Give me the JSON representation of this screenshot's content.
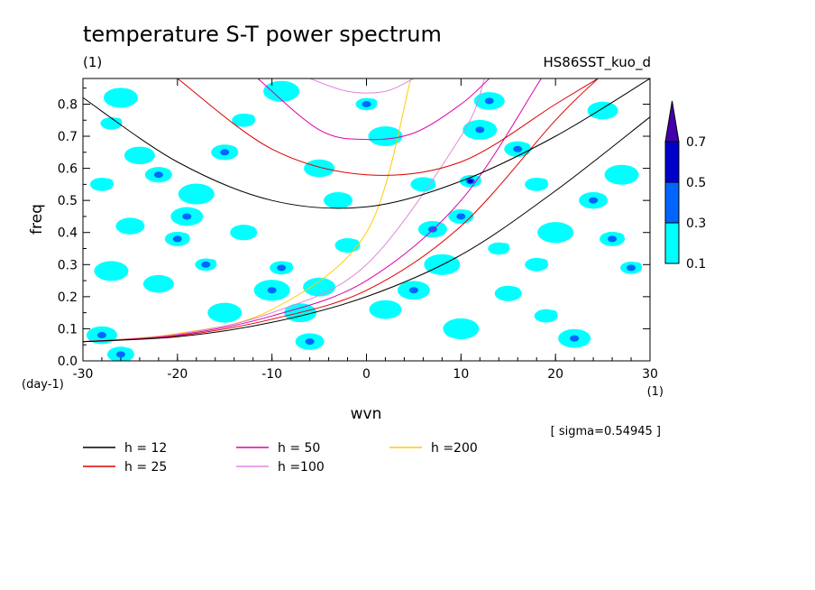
{
  "title": "temperature S-T power spectrum",
  "subtitle_left": "(1)",
  "subtitle_right": "HS86SST_kuo_d",
  "sigma_label": "[ sigma=0.54945 ]",
  "chart_data": {
    "type": "heatmap",
    "xlabel": "wvn",
    "ylabel": "freq",
    "x_unit": "(1)",
    "y_unit": "(day-1)",
    "xlim": [
      -30,
      30
    ],
    "ylim": [
      0,
      0.88
    ],
    "x_ticks": [
      "-30",
      "-20",
      "-10",
      "0",
      "10",
      "20",
      "30"
    ],
    "y_ticks": [
      "0.0",
      "0.1",
      "0.2",
      "0.3",
      "0.4",
      "0.5",
      "0.6",
      "0.7",
      "0.8"
    ],
    "colorbar": {
      "levels": [
        "0.1",
        "0.3",
        "0.5",
        "0.7"
      ],
      "colors": [
        "#00ffff",
        "#0066ff",
        "#0000cc",
        "#4400aa"
      ]
    },
    "contour_levels": [
      0.1,
      0.3,
      0.5,
      0.7
    ],
    "series": [
      {
        "name": "h = 12",
        "color": "#000000",
        "h": 12
      },
      {
        "name": "h = 25",
        "color": "#dd0000",
        "h": 25
      },
      {
        "name": "h = 50",
        "color": "#dd00aa",
        "h": 50
      },
      {
        "name": "h =100",
        "color": "#dd88dd",
        "h": 100
      },
      {
        "name": "h =200",
        "color": "#ffcc00",
        "h": 200
      }
    ],
    "kelvin_curves": [
      {
        "x": [
          -30,
          -20,
          -10,
          0,
          4.7
        ],
        "y": [
          0.06,
          0.085,
          0.16,
          0.4,
          0.88
        ],
        "color": "#ffcc00"
      },
      {
        "x": [
          -30,
          -20,
          -10,
          0,
          10,
          12.5
        ],
        "y": [
          0.06,
          0.083,
          0.15,
          0.3,
          0.7,
          0.88
        ],
        "color": "#dd88dd"
      },
      {
        "x": [
          -30,
          -20,
          -10,
          0,
          10,
          18.5
        ],
        "y": [
          0.06,
          0.08,
          0.14,
          0.25,
          0.5,
          0.88
        ],
        "color": "#dd00aa"
      },
      {
        "x": [
          -30,
          -20,
          -10,
          0,
          10,
          20,
          24.5
        ],
        "y": [
          0.06,
          0.078,
          0.13,
          0.22,
          0.42,
          0.75,
          0.88
        ],
        "color": "#dd0000"
      },
      {
        "x": [
          -30,
          -20,
          -10,
          0,
          10,
          20,
          30
        ],
        "y": [
          0.06,
          0.075,
          0.12,
          0.2,
          0.33,
          0.53,
          0.76
        ],
        "color": "#000000"
      }
    ],
    "inertia_gravity_curves": [
      {
        "color": "#000000",
        "x": [
          -30,
          -20,
          -10,
          0,
          10,
          20,
          30
        ],
        "y": [
          0.82,
          0.62,
          0.5,
          0.48,
          0.56,
          0.7,
          0.88
        ]
      },
      {
        "color": "#dd0000",
        "x": [
          -20,
          -10,
          0,
          10,
          20,
          24.5
        ],
        "y": [
          0.88,
          0.66,
          0.58,
          0.62,
          0.8,
          0.88
        ]
      },
      {
        "color": "#dd00aa",
        "x": [
          -11.5,
          -5,
          0,
          5,
          10,
          13
        ],
        "y": [
          0.88,
          0.72,
          0.69,
          0.71,
          0.8,
          0.88
        ]
      },
      {
        "color": "#dd88dd",
        "x": [
          -6,
          -2,
          2,
          5
        ],
        "y": [
          0.88,
          0.84,
          0.84,
          0.88
        ]
      }
    ],
    "blobs": [
      {
        "x": -27,
        "y": 0.74,
        "level": 1
      },
      {
        "x": -26,
        "y": 0.82,
        "level": 1
      },
      {
        "x": -24,
        "y": 0.64,
        "level": 1
      },
      {
        "x": -22,
        "y": 0.58,
        "level": 2
      },
      {
        "x": -28,
        "y": 0.55,
        "level": 1
      },
      {
        "x": -18,
        "y": 0.52,
        "level": 1
      },
      {
        "x": -19,
        "y": 0.45,
        "level": 2
      },
      {
        "x": -25,
        "y": 0.42,
        "level": 1
      },
      {
        "x": -20,
        "y": 0.38,
        "level": 2
      },
      {
        "x": -17,
        "y": 0.3,
        "level": 2
      },
      {
        "x": -27,
        "y": 0.28,
        "level": 1
      },
      {
        "x": -22,
        "y": 0.24,
        "level": 1
      },
      {
        "x": -13,
        "y": 0.4,
        "level": 1
      },
      {
        "x": -9,
        "y": 0.29,
        "level": 2
      },
      {
        "x": -10,
        "y": 0.22,
        "level": 2
      },
      {
        "x": -7,
        "y": 0.15,
        "level": 1
      },
      {
        "x": -6,
        "y": 0.06,
        "level": 2
      },
      {
        "x": -2,
        "y": 0.36,
        "level": 1
      },
      {
        "x": 0,
        "y": 0.8,
        "level": 2
      },
      {
        "x": 2,
        "y": 0.7,
        "level": 1
      },
      {
        "x": -5,
        "y": 0.6,
        "level": 1
      },
      {
        "x": -15,
        "y": 0.65,
        "level": 2
      },
      {
        "x": -13,
        "y": 0.75,
        "level": 1
      },
      {
        "x": -9,
        "y": 0.84,
        "level": 1
      },
      {
        "x": 5,
        "y": 0.22,
        "level": 2
      },
      {
        "x": 7,
        "y": 0.41,
        "level": 2
      },
      {
        "x": 10,
        "y": 0.45,
        "level": 2
      },
      {
        "x": 11,
        "y": 0.56,
        "level": 3
      },
      {
        "x": 12,
        "y": 0.72,
        "level": 2
      },
      {
        "x": 13,
        "y": 0.81,
        "level": 2
      },
      {
        "x": 16,
        "y": 0.66,
        "level": 2
      },
      {
        "x": 18,
        "y": 0.55,
        "level": 1
      },
      {
        "x": 20,
        "y": 0.4,
        "level": 1
      },
      {
        "x": 22,
        "y": 0.07,
        "level": 2
      },
      {
        "x": 24,
        "y": 0.5,
        "level": 2
      },
      {
        "x": 26,
        "y": 0.38,
        "level": 2
      },
      {
        "x": 28,
        "y": 0.29,
        "level": 2
      },
      {
        "x": 27,
        "y": 0.58,
        "level": 1
      },
      {
        "x": 25,
        "y": 0.78,
        "level": 1
      },
      {
        "x": 15,
        "y": 0.21,
        "level": 1
      },
      {
        "x": 19,
        "y": 0.14,
        "level": 1
      },
      {
        "x": 10,
        "y": 0.1,
        "level": 1
      },
      {
        "x": 2,
        "y": 0.16,
        "level": 1
      },
      {
        "x": -3,
        "y": 0.5,
        "level": 1
      },
      {
        "x": 6,
        "y": 0.55,
        "level": 1
      },
      {
        "x": 14,
        "y": 0.35,
        "level": 1
      },
      {
        "x": -15,
        "y": 0.15,
        "level": 1
      },
      {
        "x": -28,
        "y": 0.08,
        "level": 2
      },
      {
        "x": -26,
        "y": 0.02,
        "level": 2
      },
      {
        "x": 18,
        "y": 0.3,
        "level": 1
      },
      {
        "x": 8,
        "y": 0.3,
        "level": 1
      },
      {
        "x": -5,
        "y": 0.23,
        "level": 1
      }
    ]
  },
  "legend": [
    {
      "label": "h = 12",
      "color": "#000000"
    },
    {
      "label": "h = 25",
      "color": "#dd0000"
    },
    {
      "label": "h = 50",
      "color": "#dd00aa"
    },
    {
      "label": "h =100",
      "color": "#dd88dd"
    },
    {
      "label": "h =200",
      "color": "#ffcc00"
    }
  ]
}
